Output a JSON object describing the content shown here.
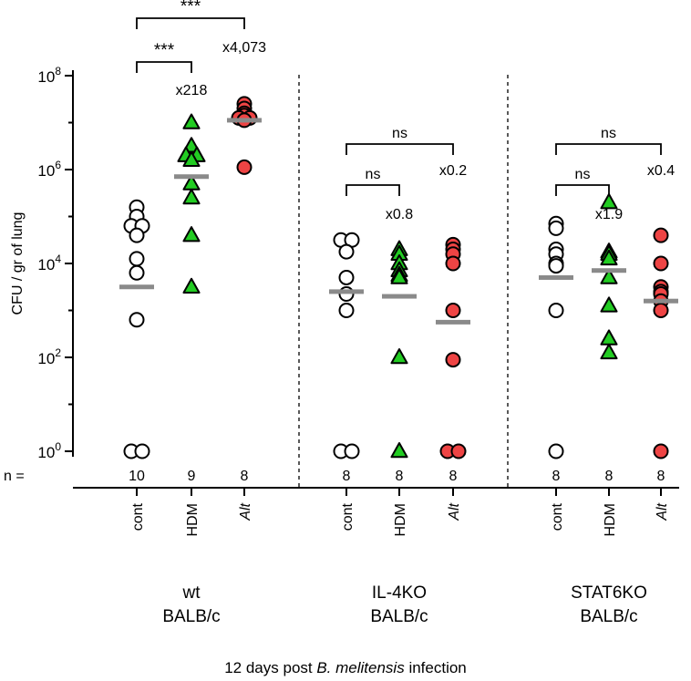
{
  "chart_data": {
    "type": "scatter",
    "ylabel": "CFU / gr of lung",
    "yscale": "log10",
    "ylim_exponent": [
      0,
      8
    ],
    "yticks": [
      {
        "base": "10",
        "exp": "0"
      },
      {
        "base": "10",
        "exp": "2"
      },
      {
        "base": "10",
        "exp": "4"
      },
      {
        "base": "10",
        "exp": "6"
      },
      {
        "base": "10",
        "exp": "8"
      }
    ],
    "n_prefix": "n =",
    "footer": {
      "before": "12 days post ",
      "italic": "B. melitensis",
      "after": " infection"
    },
    "legend": [
      {
        "condition": "cont",
        "marker": "circle",
        "color": "#ffffff"
      },
      {
        "condition": "HDM",
        "marker": "triangle",
        "color": "#22cc22"
      },
      {
        "condition": "Alt",
        "marker": "circle",
        "color": "#ee4444"
      }
    ],
    "groups": [
      {
        "label_line1": "wt",
        "label_line2": "BALB/c",
        "series": [
          {
            "condition": "cont",
            "italic": false,
            "n": "10",
            "median_log10": 3.5,
            "values_log10": [
              5.2,
              5.0,
              4.8,
              4.8,
              4.6,
              4.1,
              3.8,
              2.8,
              0,
              0
            ]
          },
          {
            "condition": "HDM",
            "italic": false,
            "n": "9",
            "median_log10": 5.85,
            "values_log10": [
              7.0,
              6.5,
              6.3,
              6.3,
              6.2,
              5.7,
              5.4,
              4.6,
              3.5
            ]
          },
          {
            "condition": "Alt",
            "italic": true,
            "n": "8",
            "median_log10": 7.05,
            "values_log10": [
              7.4,
              7.3,
              7.2,
              7.15,
              7.1,
              7.1,
              7.05,
              6.05
            ]
          }
        ],
        "annotations": [
          {
            "from": 0,
            "to": 2,
            "label": "***"
          },
          {
            "from": 0,
            "to": 1,
            "label": "***"
          }
        ],
        "fold_changes": [
          {
            "series": 1,
            "label": "x218"
          },
          {
            "series": 2,
            "label": "x4,073"
          }
        ]
      },
      {
        "label_line1": "IL-4KO",
        "label_line2": "BALB/c",
        "series": [
          {
            "condition": "cont",
            "italic": false,
            "n": "8",
            "median_log10": 3.4,
            "values_log10": [
              4.5,
              4.5,
              4.25,
              3.7,
              3.35,
              3.0,
              0,
              0
            ]
          },
          {
            "condition": "HDM",
            "italic": false,
            "n": "8",
            "median_log10": 3.3,
            "values_log10": [
              4.3,
              4.2,
              4.0,
              3.85,
              3.75,
              3.7,
              2.0,
              0
            ]
          },
          {
            "condition": "Alt",
            "italic": true,
            "n": "8",
            "median_log10": 2.75,
            "values_log10": [
              4.4,
              4.3,
              4.2,
              4.0,
              3.0,
              1.95,
              0,
              0
            ]
          }
        ],
        "annotations": [
          {
            "from": 0,
            "to": 2,
            "label": "ns"
          },
          {
            "from": 0,
            "to": 1,
            "label": "ns"
          }
        ],
        "fold_changes": [
          {
            "series": 1,
            "label": "x0.8"
          },
          {
            "series": 2,
            "label": "x0.2"
          }
        ]
      },
      {
        "label_line1": "STAT6KO",
        "label_line2": "BALB/c",
        "series": [
          {
            "condition": "cont",
            "italic": false,
            "n": "8",
            "median_log10": 3.7,
            "values_log10": [
              4.85,
              4.75,
              4.3,
              4.2,
              4.0,
              3.95,
              3.0,
              0
            ]
          },
          {
            "condition": "HDM",
            "italic": false,
            "n": "8",
            "median_log10": 3.85,
            "values_log10": [
              5.3,
              4.25,
              4.2,
              4.1,
              3.7,
              3.1,
              2.4,
              2.1
            ]
          },
          {
            "condition": "Alt",
            "italic": true,
            "n": "8",
            "median_log10": 3.2,
            "values_log10": [
              4.6,
              4.0,
              3.5,
              3.4,
              3.35,
              3.2,
              3.0,
              0
            ]
          }
        ],
        "annotations": [
          {
            "from": 0,
            "to": 2,
            "label": "ns"
          },
          {
            "from": 0,
            "to": 1,
            "label": "ns"
          }
        ],
        "fold_changes": [
          {
            "series": 1,
            "label": "x1.9"
          },
          {
            "series": 2,
            "label": "x0.4"
          }
        ]
      }
    ]
  }
}
